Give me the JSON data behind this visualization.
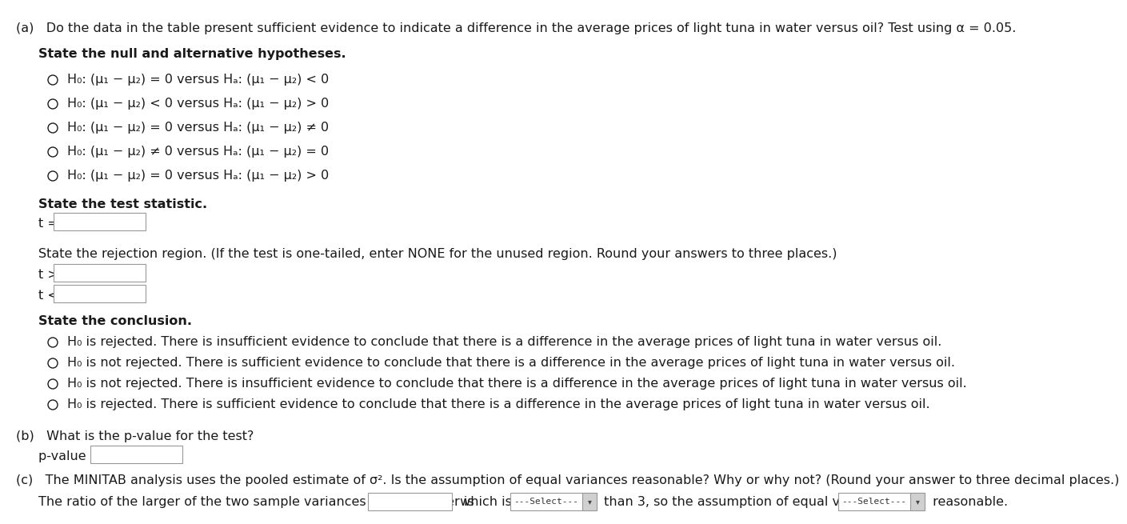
{
  "bg_color": "#ffffff",
  "text_color": "#1a1a1a",
  "part_a_header": "(a)   Do the data in the table present sufficient evidence to indicate a difference in the average prices of light tuna in water versus oil? Test using α = 0.05.",
  "hypotheses_header": "State the null and alternative hypotheses.",
  "hypothesis_options": [
    "H₀: (μ₁ − μ₂) = 0 versus Hₐ: (μ₁ − μ₂) < 0",
    "H₀: (μ₁ − μ₂) < 0 versus Hₐ: (μ₁ − μ₂) > 0",
    "H₀: (μ₁ − μ₂) = 0 versus Hₐ: (μ₁ − μ₂) ≠ 0",
    "H₀: (μ₁ − μ₂) ≠ 0 versus Hₐ: (μ₁ − μ₂) = 0",
    "H₀: (μ₁ − μ₂) = 0 versus Hₐ: (μ₁ − μ₂) > 0"
  ],
  "test_stat_header": "State the test statistic.",
  "rejection_header": "State the rejection region. (If the test is one-tailed, enter NONE for the unused region. Round your answers to three places.)",
  "conclusion_header": "State the conclusion.",
  "conclusion_options": [
    "H₀ is rejected. There is insufficient evidence to conclude that there is a difference in the average prices of light tuna in water versus oil.",
    "H₀ is not rejected. There is sufficient evidence to conclude that there is a difference in the average prices of light tuna in water versus oil.",
    "H₀ is not rejected. There is insufficient evidence to conclude that there is a difference in the average prices of light tuna in water versus oil.",
    "H₀ is rejected. There is sufficient evidence to conclude that there is a difference in the average prices of light tuna in water versus oil."
  ],
  "part_b_header": "(b)   What is the p-value for the test?",
  "pvalue_label": "p-value = ",
  "part_c_header": "(c)   The MINITAB analysis uses the pooled estimate of σ². Is the assumption of equal variances reasonable? Why or why not? (Round your answer to three decimal places.)",
  "part_c_line": "The ratio of the larger of the two sample variances to the smaller is",
  "part_c_mid": "which is",
  "part_c_end": "than 3, so the assumption of equal variances",
  "part_c_final": "reasonable.",
  "select_label": "---Select---"
}
